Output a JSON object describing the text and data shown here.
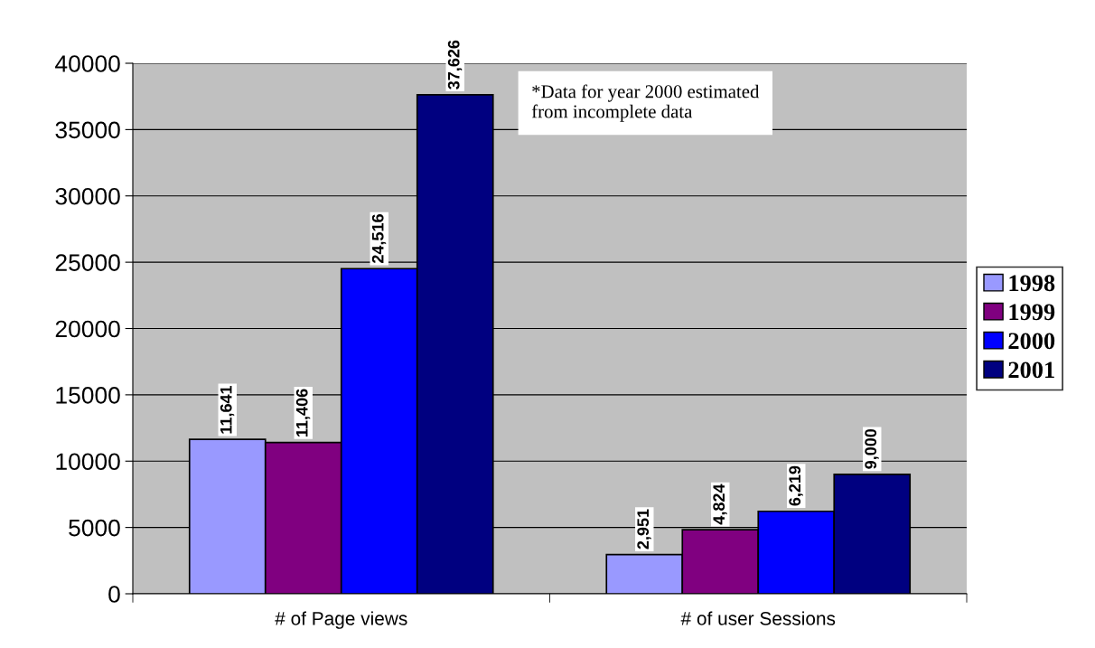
{
  "chart_data": {
    "type": "bar",
    "categories": [
      "# of Page views",
      "# of user Sessions"
    ],
    "series": [
      {
        "name": "1998",
        "color": "#9999ff",
        "values": [
          11641,
          2951
        ],
        "value_labels": [
          "11,641",
          "2,951"
        ]
      },
      {
        "name": "1999",
        "color": "#800080",
        "values": [
          11406,
          4824
        ],
        "value_labels": [
          "11,406",
          "4,824"
        ]
      },
      {
        "name": "2000",
        "color": "#0000ff",
        "values": [
          24516,
          6219
        ],
        "value_labels": [
          "24,516",
          "6,219"
        ]
      },
      {
        "name": "2001",
        "color": "#000080",
        "values": [
          37626,
          9000
        ],
        "value_labels": [
          "37,626",
          "9,000"
        ]
      }
    ],
    "ylim": [
      0,
      40000
    ],
    "yticks": [
      0,
      5000,
      10000,
      15000,
      20000,
      25000,
      30000,
      35000,
      40000
    ],
    "grid": "y",
    "legend": "right",
    "annotations": [
      "*Data for year 2000 estimated\nfrom incomplete data"
    ]
  }
}
